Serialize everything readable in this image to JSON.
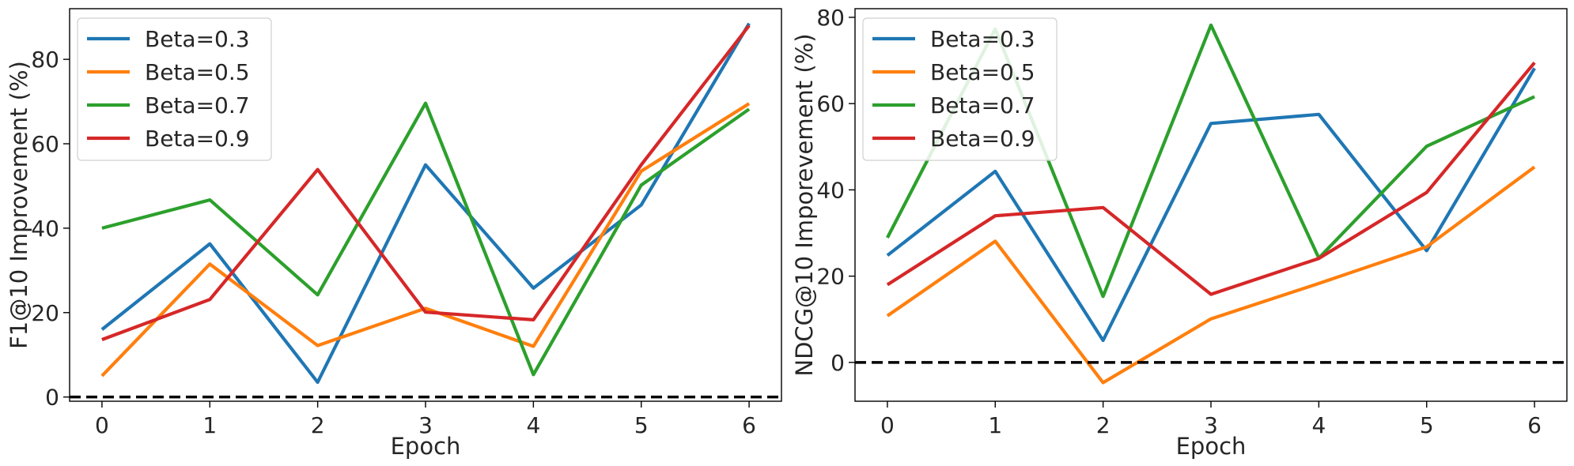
{
  "chart_data": [
    {
      "type": "line",
      "xlabel": "Epoch",
      "ylabel": "F1@10 Improvement (%)",
      "x": [
        0,
        1,
        2,
        3,
        4,
        5,
        6
      ],
      "xticks": [
        "0",
        "1",
        "2",
        "3",
        "4",
        "5",
        "6"
      ],
      "xlim": [
        -0.3,
        6.3
      ],
      "yticks": [
        "0",
        "20",
        "40",
        "60",
        "80"
      ],
      "ylim": [
        -1,
        92
      ],
      "grid": false,
      "legend_position": "upper-left",
      "reference_line": 0,
      "series": [
        {
          "name": "Beta=0.3",
          "color": "#1f77b4",
          "values": [
            16,
            36.3,
            3.5,
            55,
            25.8,
            45.5,
            88.5
          ]
        },
        {
          "name": "Beta=0.5",
          "color": "#ff7f0e",
          "values": [
            5,
            31.5,
            12.2,
            21,
            12,
            53.5,
            69.5
          ]
        },
        {
          "name": "Beta=0.7",
          "color": "#2ca02c",
          "values": [
            40,
            46.7,
            24.2,
            69.6,
            5.3,
            50.2,
            68.2
          ]
        },
        {
          "name": "Beta=0.9",
          "color": "#d62728",
          "values": [
            13.6,
            23.1,
            53.9,
            20.1,
            18.3,
            55,
            88
          ]
        }
      ]
    },
    {
      "type": "line",
      "xlabel": "Epoch",
      "ylabel": "NDCG@10 Imporevement (%)",
      "x": [
        0,
        1,
        2,
        3,
        4,
        5,
        6
      ],
      "xticks": [
        "0",
        "1",
        "2",
        "3",
        "4",
        "5",
        "6"
      ],
      "xlim": [
        -0.3,
        6.3
      ],
      "yticks": [
        "0",
        "20",
        "40",
        "60",
        "80"
      ],
      "ylim": [
        -9,
        82
      ],
      "grid": false,
      "legend_position": "upper-left",
      "reference_line": 0,
      "series": [
        {
          "name": "Beta=0.3",
          "color": "#1f77b4",
          "values": [
            24.8,
            44.3,
            5.1,
            55.4,
            57.5,
            25.9,
            68.2
          ]
        },
        {
          "name": "Beta=0.5",
          "color": "#ff7f0e",
          "values": [
            10.8,
            28.1,
            -4.7,
            10.1,
            18.3,
            26.8,
            45.3
          ]
        },
        {
          "name": "Beta=0.7",
          "color": "#2ca02c",
          "values": [
            28.9,
            77.3,
            15.3,
            78.2,
            24.2,
            50.1,
            61.6
          ]
        },
        {
          "name": "Beta=0.9",
          "color": "#d62728",
          "values": [
            18,
            34,
            35.9,
            15.8,
            24.1,
            39.4,
            69.5
          ]
        }
      ]
    }
  ]
}
